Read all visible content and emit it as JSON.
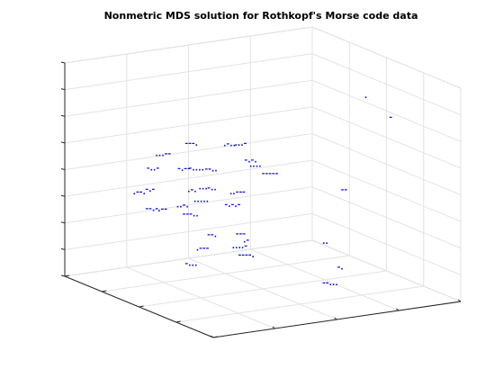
{
  "chart_data": {
    "type": "scatter3d",
    "title": "Nonmetric MDS solution for Rothkopf's Morse code data",
    "labels": [
      ".",
      "-",
      "---.",
      "...--",
      ".-..",
      "-.-.",
      "-..-",
      "-.--",
      "--..",
      "-----",
      ".--.",
      "-.-",
      ".-.",
      "-..",
      "..---",
      "--",
      "--.-",
      "..-.",
      ".....",
      "---..",
      "-.-.-",
      "--.",
      ".---",
      "---",
      "....-",
      ".-",
      "..",
      "-...",
      "----.",
      "-.",
      "--...",
      "...-",
      "....",
      "-....",
      ".--",
      "..."
    ],
    "x": [
      0,
      0.4,
      0,
      0,
      0,
      0,
      0,
      0,
      0,
      0,
      -0.4,
      0,
      0,
      0,
      0,
      0,
      0,
      0,
      0,
      0,
      0,
      0,
      0,
      0,
      0,
      0,
      0,
      0,
      0,
      0,
      0.2,
      0,
      0,
      0,
      0,
      0
    ],
    "y": [
      0.82,
      0.78,
      -0.63,
      -0.87,
      -0.32,
      -0.15,
      -0.94,
      -0.69,
      -0.47,
      -0.01,
      -0.81,
      -0.95,
      -0.61,
      -0.45,
      -0.27,
      0.63,
      -0.95,
      -0.7,
      -0.56,
      -0.65,
      -0.31,
      -0.45,
      -0.54,
      -0.22,
      -0.25,
      -0.16,
      0.48,
      -0.63,
      -0.2,
      0.6,
      0.36,
      -0.23,
      -0.11,
      -0.6,
      -0.85,
      -0.52
    ],
    "z": [
      0.65,
      0.57,
      0.45,
      0.39,
      0.39,
      0.21,
      0.27,
      0.22,
      0.18,
      0.06,
      -0.09,
      0.07,
      0.01,
      0.0,
      -0.07,
      -0.2,
      -0.11,
      -0.12,
      -0.09,
      -0.21,
      -0.18,
      -0.44,
      -0.55,
      -0.47,
      -0.58,
      -0.54,
      -0.66,
      -0.68,
      -0.67,
      -0.92,
      -0.97,
      0.38,
      0.16,
      0.21,
      -0.13,
      0.02
    ],
    "color": "#1010e0",
    "xlim": [
      -1,
      1
    ],
    "ylim": [
      -1,
      1
    ],
    "zlim": [
      -1,
      1
    ],
    "xticks": [
      -1,
      -0.5,
      0,
      0.5,
      1
    ],
    "yticks": [
      -1,
      -0.5,
      0,
      0.5,
      1
    ],
    "zticks": [
      -1,
      -0.75,
      -0.5,
      -0.25,
      0,
      0.25,
      0.5,
      0.75,
      1
    ],
    "grid": true
  }
}
